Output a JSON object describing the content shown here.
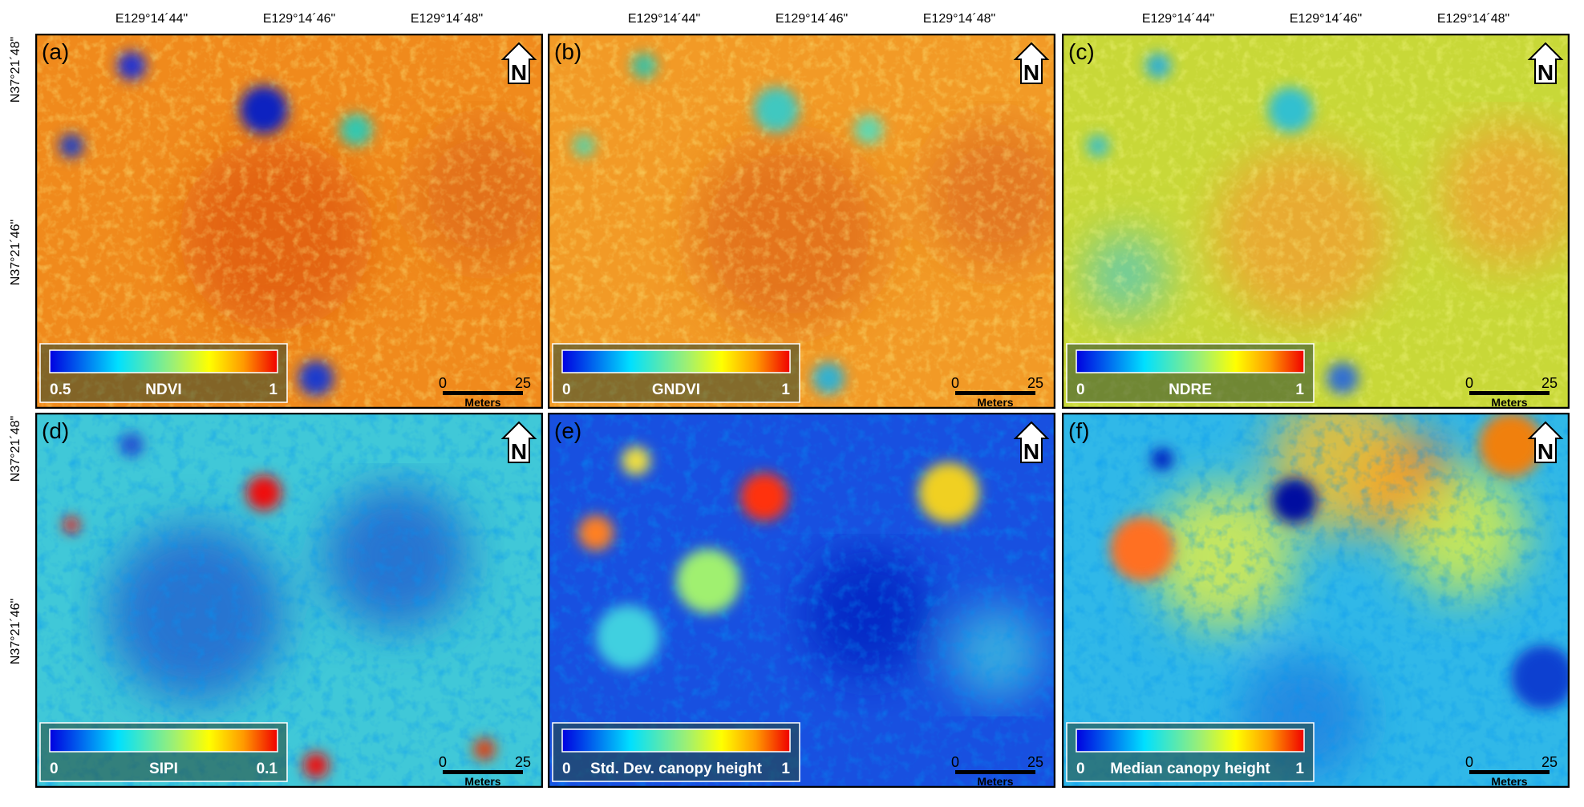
{
  "lon_labels": [
    "E129°14´44\"",
    "E129°14´46\"",
    "E129°14´48\""
  ],
  "lat_labels": [
    "N37°21´48\"",
    "N37°21´46\""
  ],
  "north_label": "N",
  "scale": {
    "min": 0,
    "max": 25,
    "unit": "Meters"
  },
  "panels": [
    {
      "label": "(a)",
      "legend": {
        "min": 0.5,
        "name": "NDVI",
        "max": 1
      }
    },
    {
      "label": "(b)",
      "legend": {
        "min": 0,
        "name": "GNDVI",
        "max": 1
      }
    },
    {
      "label": "(c)",
      "legend": {
        "min": 0,
        "name": "NDRE",
        "max": 1
      }
    },
    {
      "label": "(d)",
      "legend": {
        "min": 0,
        "name": "SIPI",
        "max": 0.1
      }
    },
    {
      "label": "(e)",
      "legend": {
        "min": 0,
        "name": "Std. Dev. canopy height",
        "max": 1
      }
    },
    {
      "label": "(f)",
      "legend": {
        "min": 0,
        "name": "Median canopy height",
        "max": 1
      }
    }
  ]
}
